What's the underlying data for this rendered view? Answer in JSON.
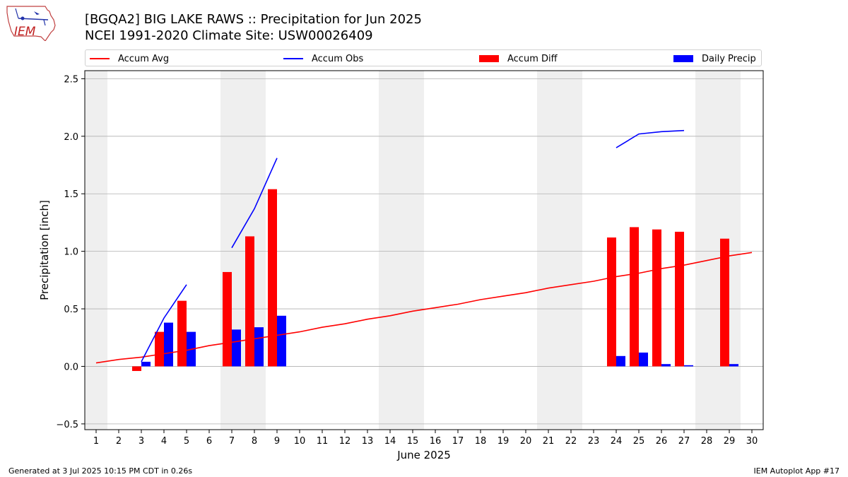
{
  "header": {
    "title_line1": "[BGQA2] BIG LAKE RAWS :: Precipitation for Jun 2025",
    "title_line2": "NCEI 1991-2020 Climate Site: USW00026409",
    "logo_text": "IEM"
  },
  "footer": {
    "generated": "Generated at 3 Jul 2025 10:15 PM CDT in 0.26s",
    "app": "IEM Autoplot App #17"
  },
  "colors": {
    "avg": "#ff0000",
    "obs": "#0000ff",
    "diff": "#ff0000",
    "daily": "#0000ff",
    "weekend_shade": "#efefef",
    "grid": "#b0b0b0"
  },
  "chart_data": {
    "type": "bar",
    "xlabel": "June 2025",
    "ylabel": "Precipitation [inch]",
    "xlim": [
      0.5,
      30.5
    ],
    "ylim": [
      -0.55,
      2.57
    ],
    "yticks": [
      -0.5,
      0.0,
      0.5,
      1.0,
      1.5,
      2.0,
      2.5
    ],
    "ytick_labels": [
      "−0.5",
      "0.0",
      "0.5",
      "1.0",
      "1.5",
      "2.0",
      "2.5"
    ],
    "x": [
      1,
      2,
      3,
      4,
      5,
      6,
      7,
      8,
      9,
      10,
      11,
      12,
      13,
      14,
      15,
      16,
      17,
      18,
      19,
      20,
      21,
      22,
      23,
      24,
      25,
      26,
      27,
      28,
      29,
      30
    ],
    "xtick_labels": [
      "1",
      "2",
      "3",
      "4",
      "5",
      "6",
      "7",
      "8",
      "9",
      "10",
      "11",
      "12",
      "13",
      "14",
      "15",
      "16",
      "17",
      "18",
      "19",
      "20",
      "21",
      "22",
      "23",
      "24",
      "25",
      "26",
      "27",
      "28",
      "29",
      "30"
    ],
    "grid": "horizontal",
    "legend_position": "top",
    "shaded_x_ranges": [
      [
        0.5,
        1.5
      ],
      [
        6.5,
        8.5
      ],
      [
        13.5,
        15.5
      ],
      [
        20.5,
        22.5
      ],
      [
        27.5,
        29.5
      ]
    ],
    "series": [
      {
        "name": "Accum Avg",
        "type": "line",
        "values": [
          0.03,
          0.06,
          0.08,
          0.11,
          0.14,
          0.18,
          0.21,
          0.24,
          0.27,
          0.3,
          0.34,
          0.37,
          0.41,
          0.44,
          0.48,
          0.51,
          0.54,
          0.58,
          0.61,
          0.64,
          0.68,
          0.71,
          0.74,
          0.78,
          0.81,
          0.85,
          0.88,
          0.92,
          0.96,
          0.99
        ]
      },
      {
        "name": "Accum Obs",
        "type": "line",
        "values": [
          null,
          null,
          0.04,
          0.42,
          0.71,
          null,
          1.03,
          1.37,
          1.81,
          null,
          null,
          null,
          null,
          null,
          null,
          null,
          null,
          null,
          null,
          null,
          null,
          null,
          null,
          1.9,
          2.02,
          2.04,
          2.05,
          null,
          null,
          null
        ]
      },
      {
        "name": "Accum Diff",
        "type": "bar",
        "values": [
          null,
          null,
          -0.04,
          0.3,
          0.57,
          null,
          0.82,
          1.13,
          1.54,
          null,
          null,
          null,
          null,
          null,
          null,
          null,
          null,
          null,
          null,
          null,
          null,
          null,
          null,
          1.12,
          1.21,
          1.19,
          1.17,
          null,
          1.11,
          null
        ]
      },
      {
        "name": "Daily Precip",
        "type": "bar",
        "values": [
          null,
          null,
          0.04,
          0.38,
          0.3,
          null,
          0.32,
          0.34,
          0.44,
          null,
          null,
          null,
          null,
          null,
          null,
          null,
          null,
          null,
          null,
          null,
          null,
          null,
          null,
          0.09,
          0.12,
          0.02,
          0.01,
          null,
          0.02,
          null
        ]
      }
    ]
  }
}
